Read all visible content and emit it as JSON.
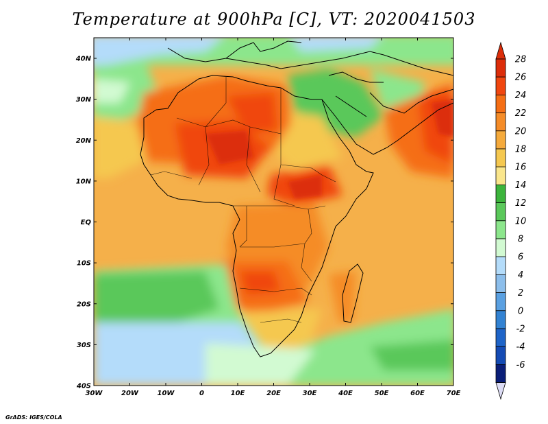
{
  "title": "Temperature at 900hPa [C], VT: 2020041503",
  "credit": "GrADS: IGES/COLA",
  "lon_ticks": [
    "30W",
    "20W",
    "10W",
    "0",
    "10E",
    "20E",
    "30E",
    "40E",
    "50E",
    "60E",
    "70E"
  ],
  "lat_ticks": [
    "40N",
    "30N",
    "20N",
    "10N",
    "EQ",
    "10S",
    "20S",
    "30S",
    "40S"
  ],
  "colorbar": {
    "labels": [
      "28",
      "26",
      "24",
      "22",
      "20",
      "18",
      "16",
      "14",
      "12",
      "10",
      "8",
      "6",
      "4",
      "2",
      "0",
      "-2",
      "-4",
      "-6"
    ],
    "colors_top_to_bottom": [
      "#dc2d0a",
      "#f0460f",
      "#f56e14",
      "#f58c28",
      "#f5aa3c",
      "#f5c850",
      "#fae68c",
      "#3cb43c",
      "#5ac85a",
      "#8ce68c",
      "#d2fad2",
      "#b4dcfa",
      "#8cbeeb",
      "#5aa0e1",
      "#3282d2",
      "#1e64c8",
      "#144bb4",
      "#0a1e78"
    ]
  },
  "map": {
    "region": "Africa",
    "lon_range": [
      -30,
      75
    ],
    "lat_range": [
      -40,
      45
    ],
    "variable": "Temperature at 900hPa",
    "units": "C"
  }
}
